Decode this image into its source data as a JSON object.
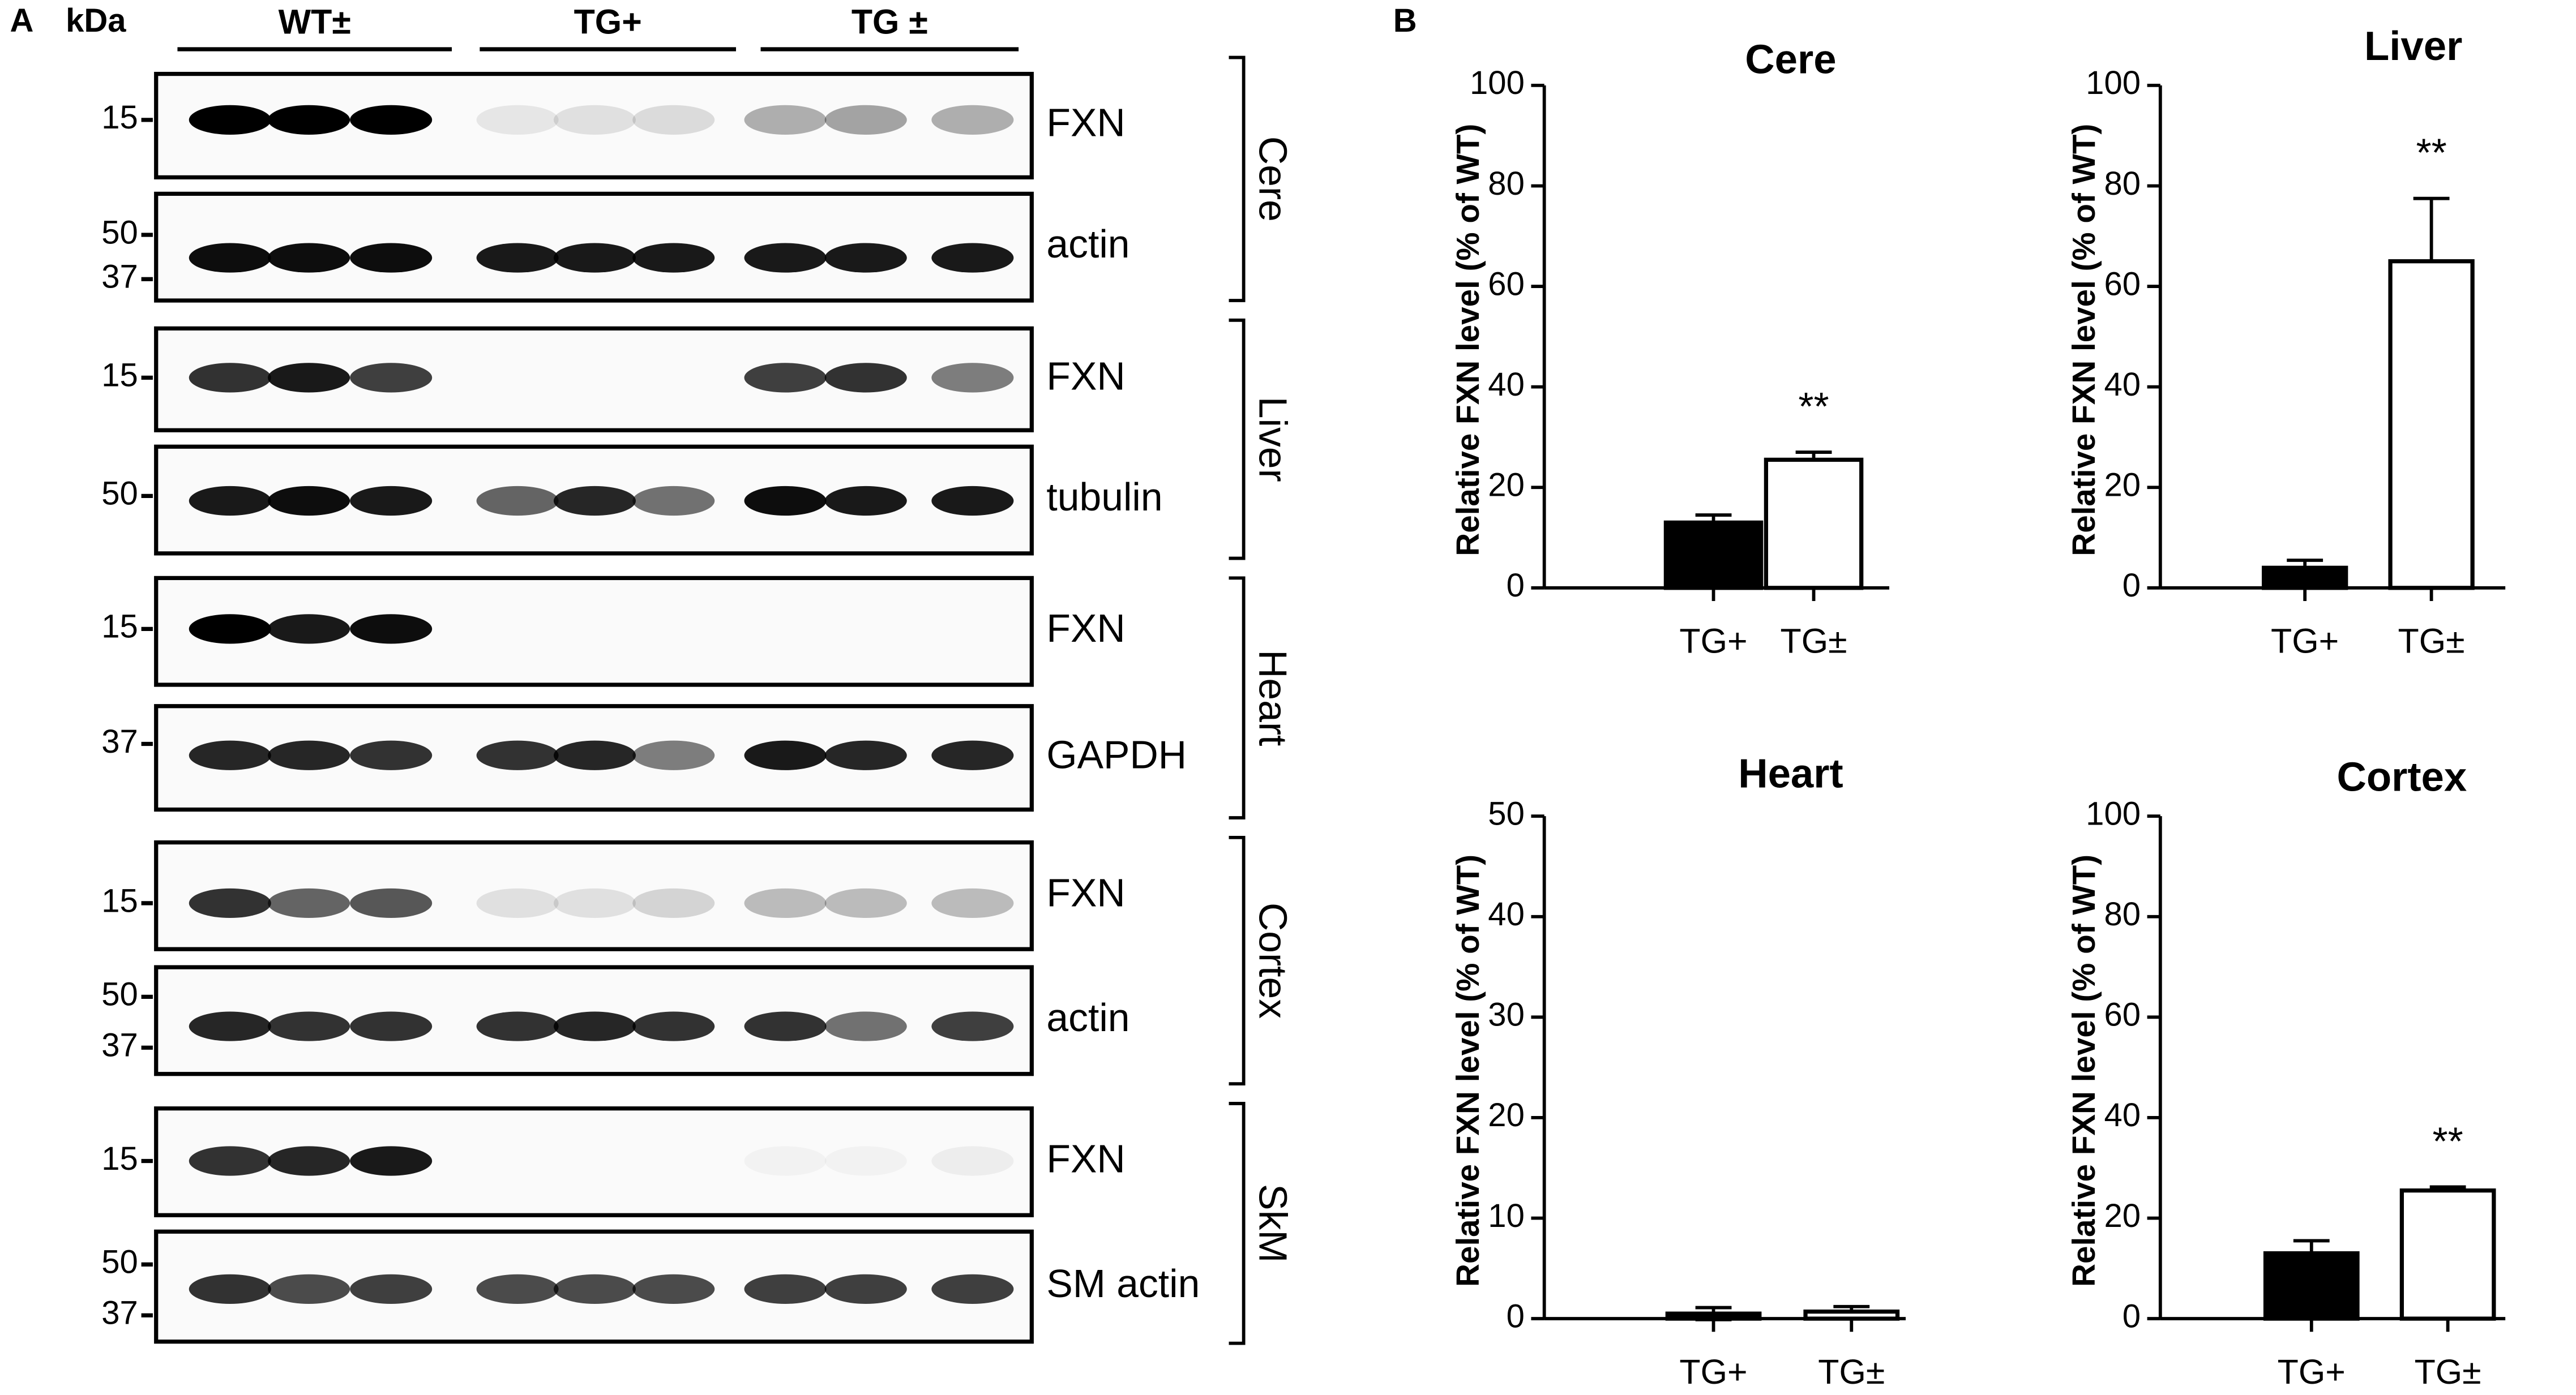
{
  "panel_a": {
    "label": "A",
    "unit": "kDa",
    "groups": [
      "WT±",
      "TG+",
      "TG ±"
    ],
    "blots": [
      {
        "tissue": "Cere",
        "rows": [
          {
            "protein": "FXN",
            "markers": [
              15
            ]
          },
          {
            "protein": "actin",
            "markers": [
              50,
              37
            ]
          }
        ]
      },
      {
        "tissue": "Liver",
        "rows": [
          {
            "protein": "FXN",
            "markers": [
              15
            ]
          },
          {
            "protein": "tubulin",
            "markers": [
              50
            ]
          }
        ]
      },
      {
        "tissue": "Heart",
        "rows": [
          {
            "protein": "FXN",
            "markers": [
              15
            ]
          },
          {
            "protein": "GAPDH",
            "markers": [
              37
            ]
          }
        ]
      },
      {
        "tissue": "Cortex",
        "rows": [
          {
            "protein": "FXN",
            "markers": [
              15
            ]
          },
          {
            "protein": "actin",
            "markers": [
              50,
              37
            ]
          }
        ]
      },
      {
        "tissue": "SkM",
        "rows": [
          {
            "protein": "FXN",
            "markers": [
              15
            ]
          },
          {
            "protein": "SM actin",
            "markers": [
              50,
              37
            ]
          }
        ]
      }
    ]
  },
  "panel_b": {
    "label": "B"
  },
  "chart_data": [
    {
      "type": "bar",
      "title": "Cere",
      "y_label": "Relative FXN level (% of WT)",
      "categories": [
        "TG+",
        "TG±"
      ],
      "values": [
        13,
        25.5
      ],
      "errors": [
        1.5,
        1.5
      ],
      "colors": [
        "#000000",
        "#ffffff"
      ],
      "ylim": [
        0,
        100
      ],
      "yticks": [
        0,
        20,
        40,
        60,
        80,
        100
      ],
      "annotations": [
        {
          "category": "TG±",
          "text": "**"
        }
      ]
    },
    {
      "type": "bar",
      "title": "Liver",
      "y_label": "Relative FXN level (% of WT)",
      "categories": [
        "TG+",
        "TG±"
      ],
      "values": [
        4,
        65
      ],
      "errors": [
        1.5,
        12.5
      ],
      "colors": [
        "#000000",
        "#ffffff"
      ],
      "ylim": [
        0,
        100
      ],
      "yticks": [
        0,
        20,
        40,
        60,
        80,
        100
      ],
      "annotations": [
        {
          "category": "TG±",
          "text": "**"
        }
      ]
    },
    {
      "type": "bar",
      "title": "Heart",
      "y_label": "Relative FXN level (% of WT)",
      "categories": [
        "TG+",
        "TG±"
      ],
      "values": [
        0.5,
        0.7
      ],
      "errors": [
        0.6,
        0.5
      ],
      "colors": [
        "#000000",
        "#ffffff"
      ],
      "ylim": [
        0,
        50
      ],
      "yticks": [
        0,
        10,
        20,
        30,
        40,
        50
      ]
    },
    {
      "type": "bar",
      "title": "Cortex",
      "y_label": "Relative FXN level (% of WT)",
      "categories": [
        "TG+",
        "TG±"
      ],
      "values": [
        13,
        25.5
      ],
      "errors": [
        2.5,
        0.7
      ],
      "colors": [
        "#000000",
        "#ffffff"
      ],
      "ylim": [
        0,
        100
      ],
      "yticks": [
        0,
        20,
        40,
        60,
        80,
        100
      ],
      "annotations": [
        {
          "category": "TG±",
          "text": "**"
        }
      ]
    }
  ]
}
